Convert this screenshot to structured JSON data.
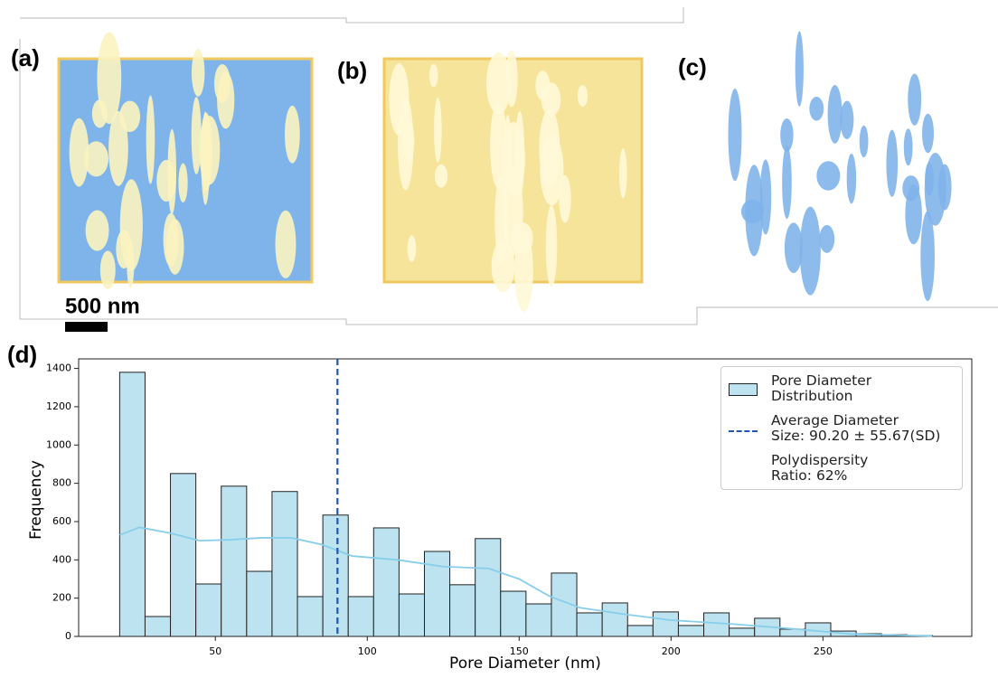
{
  "panel_labels": [
    "(a)",
    "(b)",
    "(c)",
    "(d)"
  ],
  "scale_bar": "500 nm",
  "chart_data": {
    "type": "histogram",
    "xlabel": "Pore Diameter (nm)",
    "ylabel": "Frequency",
    "bins": [
      18.5,
      26.86,
      35.22,
      43.58,
      51.94,
      60.3,
      68.66,
      77.02,
      85.38,
      93.74,
      102.1,
      110.46,
      118.82,
      127.18,
      135.54,
      143.9,
      152.26,
      160.62,
      168.98,
      177.34,
      185.7,
      194.06,
      202.42,
      210.78,
      219.14,
      227.5,
      235.86,
      244.22,
      252.58,
      260.94,
      269.3,
      277.66,
      286.02
    ],
    "series": [
      {
        "name": "Pore Diameter\nDistribution",
        "color": "#bde3f0",
        "values": [
          1380,
          104,
          851,
          274,
          785,
          340,
          757,
          208,
          634,
          208,
          567,
          222,
          444,
          270,
          511,
          236,
          170,
          331,
          123,
          175,
          57,
          128,
          57,
          123,
          43,
          95,
          38,
          71,
          28,
          14,
          9,
          5
        ]
      }
    ],
    "kde": {
      "color": "#87ceeb",
      "x": [
        18.5,
        25,
        35,
        45,
        55,
        65,
        75,
        85,
        95,
        110,
        125,
        140,
        150,
        160,
        170,
        185,
        200,
        220,
        240,
        260,
        286
      ],
      "y": [
        530,
        570,
        540,
        500,
        505,
        515,
        515,
        480,
        420,
        400,
        365,
        355,
        300,
        210,
        150,
        115,
        85,
        65,
        40,
        12,
        2
      ]
    },
    "average_line": {
      "name": "Average Diameter\nSize: 90.20 ± 55.67(SD)",
      "value": 90.2,
      "color": "#2255b0"
    },
    "annotation": "Polydispersity\nRatio: 62%",
    "xlim": [
      5,
      299
    ],
    "ylim": [
      0,
      1450
    ],
    "xticks": [
      50,
      100,
      150,
      200,
      250
    ],
    "yticks": [
      0,
      200,
      400,
      600,
      800,
      1000,
      1200,
      1400
    ]
  }
}
